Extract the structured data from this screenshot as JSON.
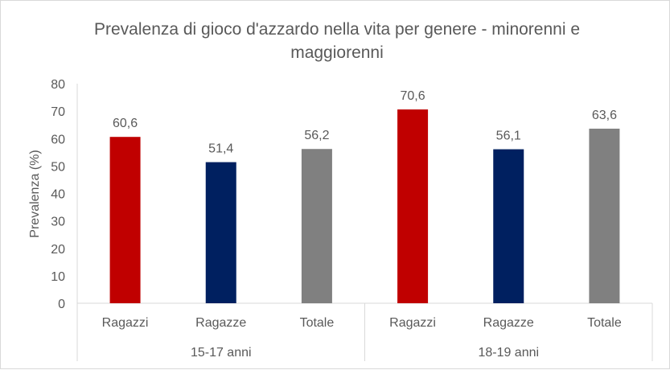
{
  "chart_data": {
    "type": "bar",
    "title": "Prevalenza di gioco d'azzardo nella vita per genere - minorenni e maggiorenni",
    "title_lines": [
      "Prevalenza di gioco d'azzardo nella vita per genere - minorenni e",
      "maggiorenni"
    ],
    "ylabel": "Prevalenza (%)",
    "xlabel": "",
    "ylim": [
      0,
      80
    ],
    "yticks": [
      0,
      10,
      20,
      30,
      40,
      50,
      60,
      70,
      80
    ],
    "grid": false,
    "groups": [
      {
        "label": "15-17 anni",
        "categories": [
          "Ragazzi",
          "Ragazze",
          "Totale"
        ],
        "values": [
          60.6,
          51.4,
          56.2
        ],
        "value_labels": [
          "60,6",
          "51,4",
          "56,2"
        ]
      },
      {
        "label": "18-19 anni",
        "categories": [
          "Ragazzi",
          "Ragazze",
          "Totale"
        ],
        "values": [
          70.6,
          56.1,
          63.6
        ],
        "value_labels": [
          "70,6",
          "56,1",
          "63,6"
        ]
      }
    ],
    "colors": {
      "Ragazzi": "#C00000",
      "Ragazze": "#002060",
      "Totale": "#808080"
    }
  }
}
